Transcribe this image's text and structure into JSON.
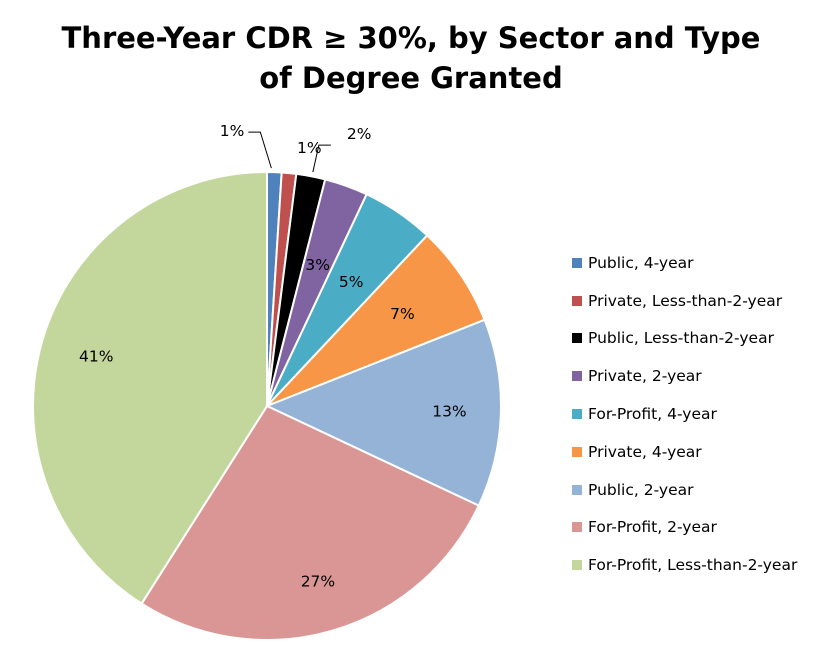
{
  "chart_data": {
    "type": "pie",
    "title": "Three-Year CDR ≥ 30%, by Sector and Type of Degree Granted",
    "title_lines": [
      "Three-Year CDR ≥ 30%, by Sector and Type",
      "of Degree Granted"
    ],
    "slices": [
      {
        "label": "Public, 4-year",
        "value": 1,
        "display": "1%",
        "color": "#4F81BD"
      },
      {
        "label": "Private, Less-than-2-year",
        "value": 1,
        "display": "1%",
        "color": "#C0504D"
      },
      {
        "label": "Public, Less-than-2-year",
        "value": 2,
        "display": "2%",
        "color": "#000000"
      },
      {
        "label": "Private, 2-year",
        "value": 3,
        "display": "3%",
        "color": "#8064A2"
      },
      {
        "label": "For-Profit, 4-year",
        "value": 5,
        "display": "5%",
        "color": "#4BACC6"
      },
      {
        "label": "Private, 4-year",
        "value": 7,
        "display": "7%",
        "color": "#F79646"
      },
      {
        "label": "Public, 2-year",
        "value": 13,
        "display": "13%",
        "color": "#95B3D7"
      },
      {
        "label": "For-Profit, 2-year",
        "value": 27,
        "display": "27%",
        "color": "#D99694"
      },
      {
        "label": "For-Profit, Less-than-2-year",
        "value": 41,
        "display": "41%",
        "color": "#C3D69B"
      }
    ],
    "legend_position": "right"
  }
}
